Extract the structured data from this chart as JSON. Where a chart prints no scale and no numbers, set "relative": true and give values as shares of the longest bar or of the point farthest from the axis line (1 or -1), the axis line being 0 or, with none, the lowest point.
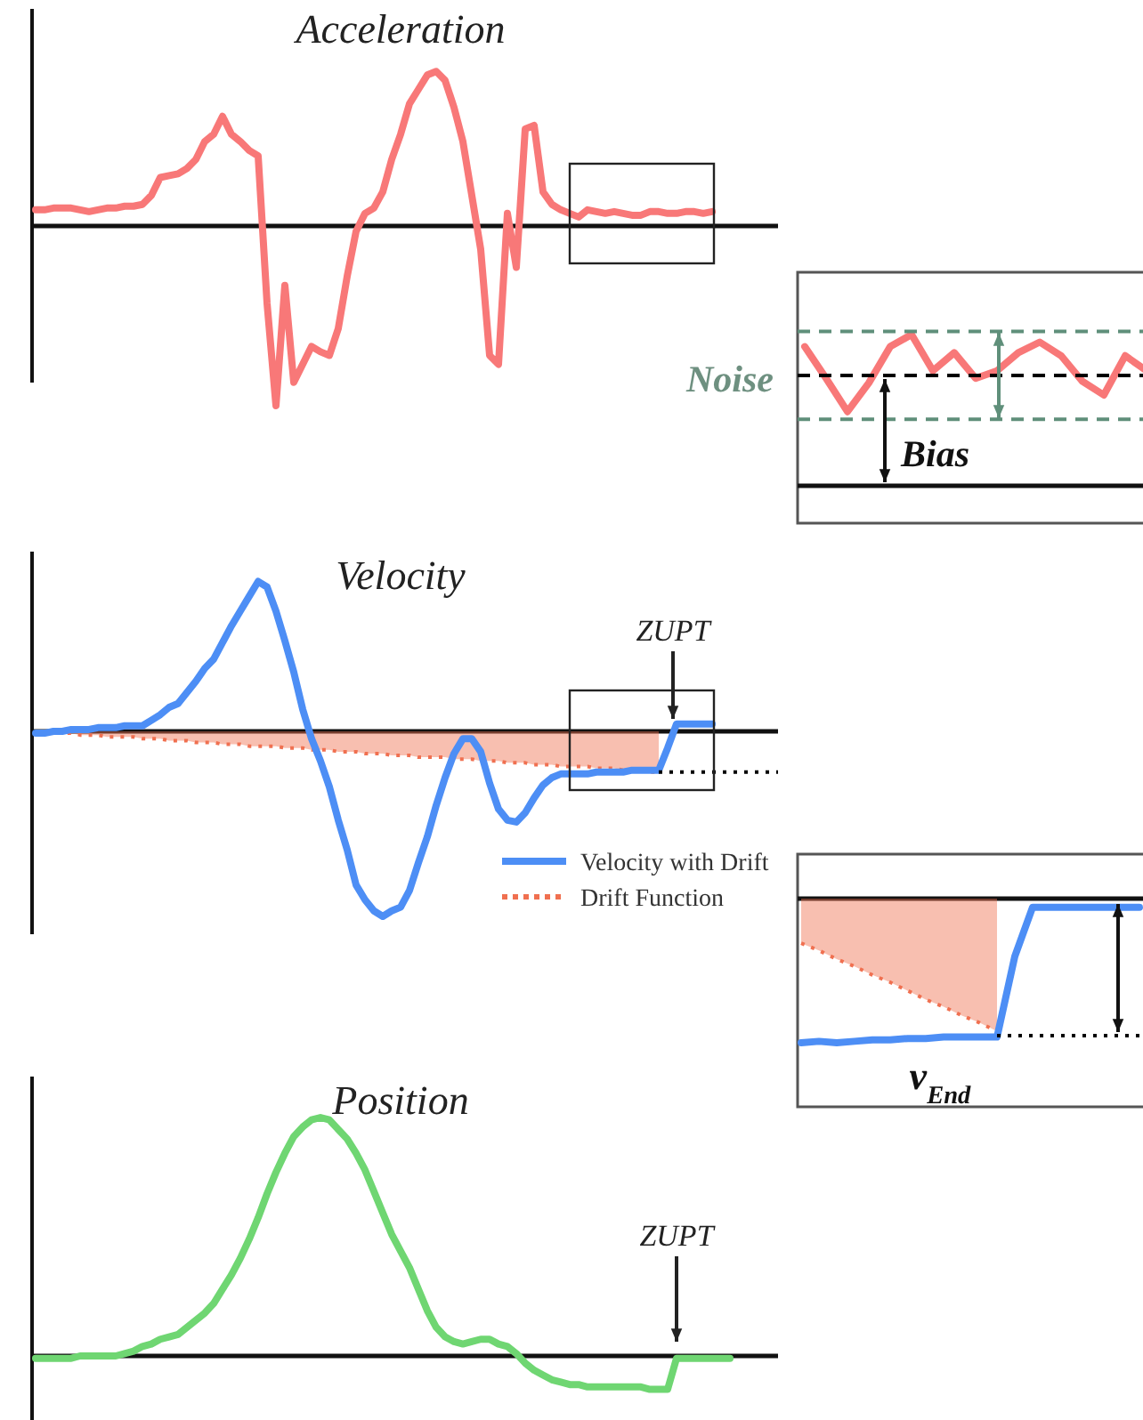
{
  "chart_data": [
    {
      "type": "line",
      "title": "Acceleration",
      "relative": true,
      "categories": [
        null,
        null,
        null,
        null,
        null,
        null,
        null,
        null,
        null,
        null,
        null,
        null,
        null,
        null,
        null,
        null,
        null,
        null,
        null,
        null,
        null,
        null,
        null,
        null,
        null,
        null,
        null,
        null,
        null,
        null,
        null,
        null,
        null,
        null,
        null,
        null,
        null,
        null,
        null,
        null,
        null,
        null,
        null,
        null,
        null,
        null,
        null,
        null,
        null,
        null,
        null,
        null,
        null,
        null,
        null,
        null,
        null,
        null,
        null,
        null,
        null,
        null,
        null,
        null,
        null,
        null,
        null,
        null,
        null,
        null,
        null,
        null,
        null,
        null,
        null,
        null,
        null
      ],
      "series": [
        {
          "color": "#f87878",
          "line_style": "solid",
          "values": [
            0.09,
            0.09,
            0.1,
            0.1,
            0.1,
            0.09,
            0.08,
            0.09,
            0.1,
            0.1,
            0.11,
            0.11,
            0.12,
            0.17,
            0.27,
            0.28,
            0.29,
            0.32,
            0.37,
            0.47,
            0.51,
            0.61,
            0.51,
            0.47,
            0.42,
            0.39,
            -0.43,
            -1.0,
            -0.33,
            -0.87,
            -0.77,
            -0.67,
            -0.7,
            -0.72,
            -0.57,
            -0.28,
            -0.03,
            0.07,
            0.1,
            0.19,
            0.37,
            0.51,
            0.68,
            0.76,
            0.84,
            0.86,
            0.81,
            0.66,
            0.47,
            0.17,
            -0.13,
            -0.72,
            -0.77,
            0.07,
            -0.23,
            0.54,
            0.56,
            0.19,
            0.12,
            0.09,
            0.07,
            0.05,
            0.09,
            0.08,
            0.07,
            0.08,
            0.07,
            0.06,
            0.06,
            0.08,
            0.08,
            0.07,
            0.07,
            0.08,
            0.08,
            0.07,
            0.08
          ]
        }
      ]
    },
    {
      "type": "line",
      "relative": true,
      "categories": [
        null,
        null,
        null,
        null,
        null,
        null,
        null,
        null,
        null,
        null,
        null,
        null,
        null,
        null,
        null,
        null,
        null
      ],
      "series": [
        {
          "color": "#f87878",
          "line_style": "solid",
          "values": [
            0.92,
            0.71,
            0.49,
            0.68,
            0.92,
            1.0,
            0.76,
            0.88,
            0.71,
            0.76,
            0.88,
            0.95,
            0.86,
            0.69,
            0.6,
            0.86,
            0.76
          ]
        }
      ],
      "ref_lines": [
        {
          "axis": "y",
          "value": 0.73,
          "color": "#000000",
          "line_style": "dashed"
        },
        {
          "axis": "y",
          "value": 1.02,
          "color": "#5f8f7a",
          "line_style": "dashed"
        },
        {
          "axis": "y",
          "value": 0.44,
          "color": "#5f8f7a",
          "line_style": "dashed"
        }
      ],
      "annotations": [
        "Noise",
        "Bias"
      ]
    },
    {
      "type": "line",
      "title": "Velocity",
      "relative": true,
      "legend": "bottom right",
      "categories": [
        null,
        null,
        null,
        null,
        null,
        null,
        null,
        null,
        null,
        null,
        null,
        null,
        null,
        null,
        null,
        null,
        null,
        null,
        null,
        null,
        null,
        null,
        null,
        null,
        null,
        null,
        null,
        null,
        null,
        null,
        null,
        null,
        null,
        null,
        null,
        null,
        null,
        null,
        null,
        null,
        null,
        null,
        null,
        null,
        null,
        null,
        null,
        null,
        null,
        null,
        null,
        null,
        null,
        null,
        null,
        null,
        null,
        null,
        null,
        null,
        null,
        null,
        null,
        null,
        null,
        null,
        null,
        null,
        null,
        null,
        null,
        null,
        null,
        null,
        null,
        null,
        null
      ],
      "series": [
        {
          "name": "Drift Function",
          "type": "area",
          "color": "#f07050",
          "line_style": "dotted",
          "values": [
            0,
            0,
            -0.01,
            -0.01,
            -0.01,
            -0.02,
            -0.02,
            -0.02,
            -0.03,
            -0.03,
            -0.03,
            -0.03,
            -0.04,
            -0.04,
            -0.04,
            -0.05,
            -0.05,
            -0.05,
            -0.06,
            -0.06,
            -0.06,
            -0.07,
            -0.07,
            -0.07,
            -0.08,
            -0.08,
            -0.08,
            -0.08,
            -0.09,
            -0.09,
            -0.09,
            -0.1,
            -0.1,
            -0.1,
            -0.11,
            -0.11,
            -0.11,
            -0.12,
            -0.12,
            -0.12,
            -0.13,
            -0.13,
            -0.13,
            -0.14,
            -0.14,
            -0.14,
            -0.14,
            -0.15,
            -0.15,
            -0.15,
            -0.16,
            -0.16,
            -0.16,
            -0.17,
            -0.17,
            -0.17,
            -0.18,
            -0.18,
            -0.18,
            -0.19,
            -0.19,
            -0.19,
            -0.19,
            -0.2,
            -0.2,
            -0.2,
            -0.21,
            -0.21,
            -0.21,
            -0.22,
            -0.22,
            null,
            null,
            null,
            null,
            null,
            null
          ]
        },
        {
          "name": "Velocity with Drift",
          "type": "line",
          "color": "#4d8ef5",
          "line_style": "solid",
          "values": [
            -0.01,
            -0.01,
            0,
            0,
            0.01,
            0.01,
            0.01,
            0.02,
            0.02,
            0.02,
            0.03,
            0.03,
            0.03,
            0.06,
            0.09,
            0.13,
            0.15,
            0.21,
            0.27,
            0.34,
            0.39,
            0.48,
            0.57,
            0.65,
            0.73,
            0.81,
            0.78,
            0.65,
            0.49,
            0.32,
            0.12,
            -0.04,
            -0.16,
            -0.3,
            -0.48,
            -0.64,
            -0.83,
            -0.91,
            -0.97,
            -1.0,
            -0.97,
            -0.95,
            -0.86,
            -0.71,
            -0.57,
            -0.4,
            -0.25,
            -0.12,
            -0.04,
            -0.04,
            -0.11,
            -0.28,
            -0.42,
            -0.48,
            -0.49,
            -0.44,
            -0.36,
            -0.29,
            -0.25,
            -0.23,
            -0.23,
            -0.23,
            -0.23,
            -0.22,
            -0.22,
            -0.22,
            -0.22,
            -0.21,
            -0.21,
            -0.21,
            -0.21,
            -0.09,
            0.04,
            0.04,
            0.04,
            0.04,
            0.04
          ]
        }
      ],
      "ref_lines": [
        {
          "axis": "y",
          "value": -0.22,
          "color": "#000000",
          "line_style": "dotted"
        }
      ],
      "annotations": [
        "ZUPT"
      ]
    },
    {
      "type": "line",
      "relative": true,
      "categories": [
        null,
        null,
        null,
        null,
        null,
        null,
        null,
        null,
        null,
        null,
        null,
        null,
        null,
        null,
        null,
        null,
        null,
        null,
        null,
        null
      ],
      "series": [
        {
          "type": "area",
          "color": "#f07050",
          "line_style": "dotted",
          "values": [
            -0.31,
            -0.36,
            -0.42,
            -0.47,
            -0.53,
            -0.58,
            -0.64,
            -0.7,
            -0.75,
            -0.81,
            -0.86,
            -0.92,
            null,
            null,
            null,
            null,
            null,
            null,
            null,
            null
          ]
        },
        {
          "type": "line",
          "color": "#4d8ef5",
          "line_style": "solid",
          "values": [
            -1.0,
            -0.99,
            -1.0,
            -0.99,
            -0.98,
            -0.98,
            -0.97,
            -0.97,
            -0.96,
            -0.96,
            -0.96,
            -0.96,
            -0.4,
            -0.06,
            -0.06,
            -0.06,
            -0.06,
            -0.06,
            -0.06,
            -0.06
          ]
        }
      ],
      "ref_lines": [
        {
          "axis": "y",
          "value": -0.95,
          "color": "#000000",
          "line_style": "dotted"
        }
      ],
      "annotations": [
        "v$_{End}$"
      ]
    },
    {
      "type": "line",
      "title": "Position",
      "relative": true,
      "categories": [
        null,
        null,
        null,
        null,
        null,
        null,
        null,
        null,
        null,
        null,
        null,
        null,
        null,
        null,
        null,
        null,
        null,
        null,
        null,
        null,
        null,
        null,
        null,
        null,
        null,
        null,
        null,
        null,
        null,
        null,
        null,
        null,
        null,
        null,
        null,
        null,
        null,
        null,
        null,
        null,
        null,
        null,
        null,
        null,
        null,
        null,
        null,
        null,
        null,
        null,
        null,
        null,
        null,
        null,
        null,
        null,
        null,
        null,
        null,
        null,
        null,
        null,
        null,
        null,
        null,
        null,
        null,
        null,
        null,
        null,
        null,
        null,
        null,
        null,
        null,
        null,
        null,
        null,
        null
      ],
      "series": [
        {
          "color": "#6fd672",
          "line_style": "solid",
          "values": [
            -0.01,
            -0.01,
            -0.01,
            -0.01,
            -0.01,
            0,
            0,
            0,
            0,
            0,
            0.01,
            0.02,
            0.04,
            0.05,
            0.07,
            0.08,
            0.09,
            0.12,
            0.15,
            0.18,
            0.22,
            0.28,
            0.34,
            0.41,
            0.49,
            0.58,
            0.68,
            0.77,
            0.85,
            0.92,
            0.96,
            0.99,
            1.0,
            0.99,
            0.95,
            0.91,
            0.85,
            0.78,
            0.69,
            0.6,
            0.51,
            0.44,
            0.37,
            0.28,
            0.19,
            0.12,
            0.08,
            0.06,
            0.05,
            0.06,
            0.07,
            0.07,
            0.05,
            0.04,
            0.01,
            -0.03,
            -0.06,
            -0.08,
            -0.1,
            -0.11,
            -0.12,
            -0.12,
            -0.13,
            -0.13,
            -0.13,
            -0.13,
            -0.13,
            -0.13,
            -0.13,
            -0.14,
            -0.14,
            -0.14,
            -0.01,
            -0.01,
            -0.01,
            -0.01,
            -0.01,
            -0.01,
            -0.01
          ]
        }
      ],
      "annotations": [
        "ZUPT"
      ]
    }
  ]
}
